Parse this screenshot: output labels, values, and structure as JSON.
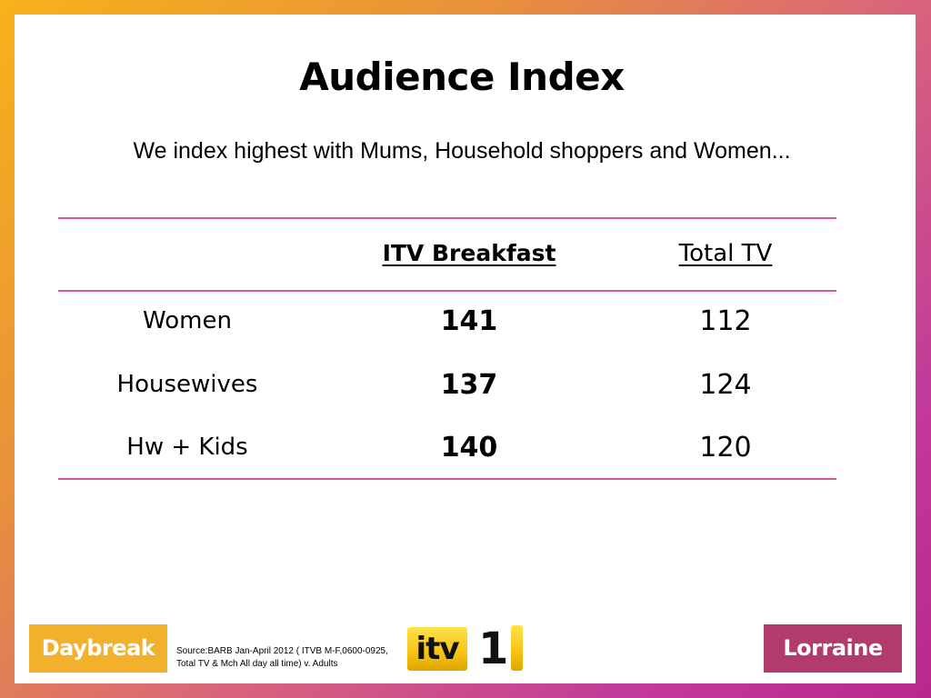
{
  "slide": {
    "title": "Audience Index",
    "subtitle": "We index highest with Mums, Household shoppers and Women..."
  },
  "table": {
    "columns": [
      "",
      "ITV Breakfast",
      "Total TV"
    ],
    "rows": [
      {
        "label": "Women",
        "itv_breakfast": "141",
        "total_tv": "112"
      },
      {
        "label": "Housewives",
        "itv_breakfast": "137",
        "total_tv": "124"
      },
      {
        "label": "Hw + Kids",
        "itv_breakfast": "140",
        "total_tv": "120"
      }
    ]
  },
  "footer": {
    "daybreak_logo_text": "Daybreak",
    "source": "Source:BARB  Jan-April 2012 ( ITVB M-F,0600-0925, Total TV & Mch All day all time) v. Adults",
    "itv_logo_text": "itv",
    "itv_logo_number": "1",
    "lorraine_logo_text": "Lorraine"
  },
  "colors": {
    "rule": "#d8579f",
    "daybreak": "#f2b12a",
    "lorraine": "#b23b6d",
    "itv_yellow": "#f5c313"
  }
}
